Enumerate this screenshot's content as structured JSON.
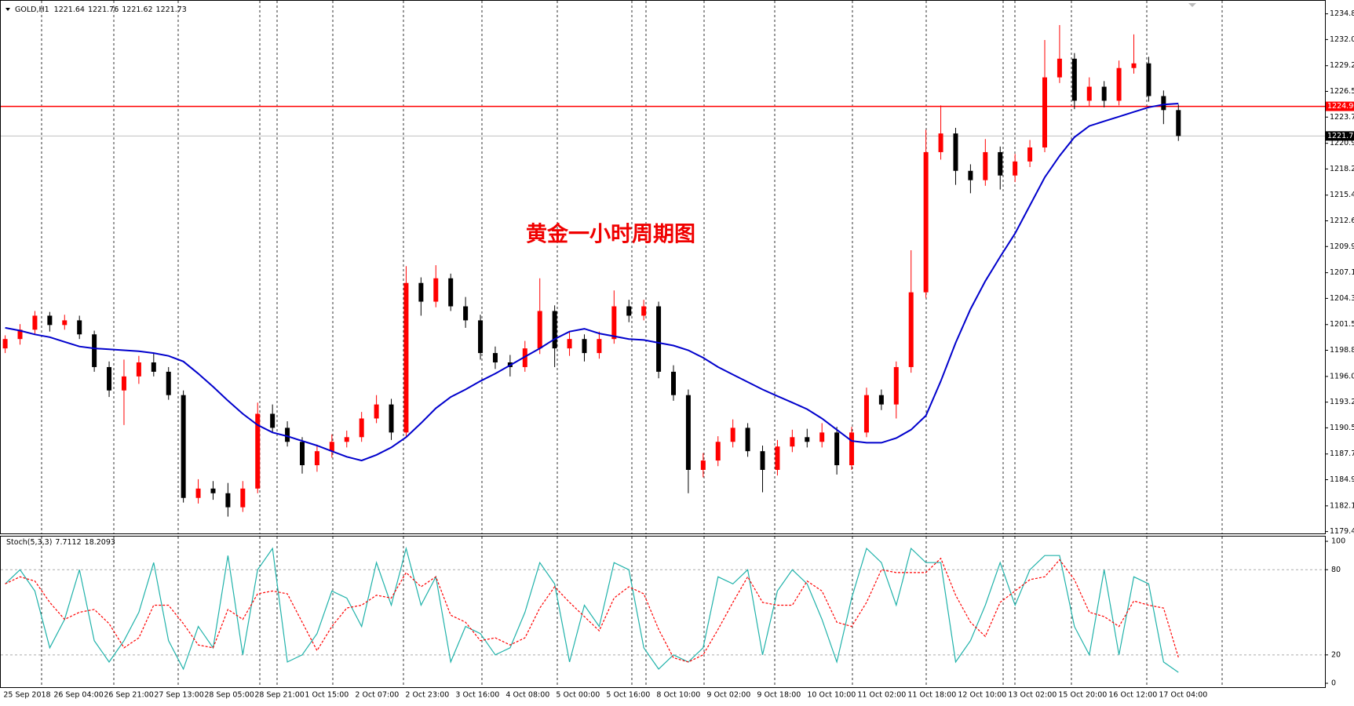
{
  "chart_data": {
    "type": "candlestick",
    "header": {
      "symbol": "GOLD,H1",
      "values": [
        1221.64,
        1221.76,
        1221.62,
        1221.73
      ]
    },
    "annotation": "黄金一小时周期图",
    "up_color": "#ff0000",
    "down_color": "#000000",
    "ylim": [
      1179.2,
      1236.28
    ],
    "yticks": [
      {
        "value": 1234.8,
        "label": "1234.80"
      },
      1232.05,
      1229.25,
      {
        "value": 1226.5,
        "label": "1226.50"
      },
      1223.75,
      1220.95,
      {
        "value": 1218.2,
        "label": "1218.20"
      },
      {
        "value": 1215.4,
        "label": "1215.40"
      },
      1212.65,
      {
        "value": 1209.9,
        "label": "1209.90"
      },
      {
        "value": 1207.1,
        "label": "1207.10"
      },
      1204.35,
      1201.55,
      {
        "value": 1198.8,
        "label": "1198.80"
      },
      {
        "value": 1196,
        "label": "1196.00"
      },
      1193.25,
      {
        "value": 1190.5,
        "label": "1190.50"
      },
      {
        "value": 1187.7,
        "label": "1187.70"
      },
      1184.95,
      1182.15,
      {
        "value": 1179.4,
        "label": "1179.40"
      }
    ],
    "hline": {
      "value": 1224.9,
      "label": "1224.90",
      "color": "#ff0000"
    },
    "last_price": 1221.73,
    "xlabels": [
      "25 Sep 2018",
      "26 Sep 04:00",
      "26 Sep 21:00",
      "27 Sep 13:00",
      "28 Sep 05:00",
      "28 Sep 21:00",
      "1 Oct 15:00",
      "2 Oct 07:00",
      "2 Oct 23:00",
      "3 Oct 16:00",
      "4 Oct 08:00",
      "5 Oct 00:00",
      "5 Oct 16:00",
      "8 Oct 10:00",
      "9 Oct 02:00",
      "9 Oct 18:00",
      "10 Oct 10:00",
      "11 Oct 02:00",
      "11 Oct 18:00",
      "12 Oct 10:00",
      "13 Oct 02:00",
      "15 Oct 20:00",
      "16 Oct 12:00",
      "17 Oct 04:00"
    ],
    "ohlc": [
      [
        1199.0,
        1200.4,
        1198.5,
        1200.0
      ],
      [
        1200.0,
        1201.6,
        1199.4,
        1201.0
      ],
      [
        1201.0,
        1203.0,
        1200.5,
        1202.5
      ],
      [
        1202.5,
        1202.9,
        1200.8,
        1201.5
      ],
      [
        1201.5,
        1202.6,
        1201.0,
        1202.0
      ],
      [
        1202.0,
        1202.5,
        1200.0,
        1200.5
      ],
      [
        1200.5,
        1200.9,
        1196.5,
        1197.0
      ],
      [
        1197.0,
        1197.6,
        1193.8,
        1194.5
      ],
      [
        1194.5,
        1197.8,
        1190.8,
        1196.0
      ],
      [
        1196.0,
        1198.2,
        1195.2,
        1197.5
      ],
      [
        1197.5,
        1198.5,
        1196.0,
        1196.5
      ],
      [
        1196.5,
        1197.0,
        1193.5,
        1194.0
      ],
      [
        1194.0,
        1194.5,
        1182.5,
        1183.0
      ],
      [
        1183.0,
        1185.0,
        1182.4,
        1184.0
      ],
      [
        1184.0,
        1184.8,
        1182.8,
        1183.5
      ],
      [
        1183.5,
        1184.6,
        1181.0,
        1182.0
      ],
      [
        1182.0,
        1184.8,
        1181.5,
        1184.0
      ],
      [
        1184.0,
        1193.2,
        1183.5,
        1192.0
      ],
      [
        1192.0,
        1193.0,
        1190.0,
        1190.5
      ],
      [
        1190.5,
        1191.2,
        1188.5,
        1189.0
      ],
      [
        1189.0,
        1189.5,
        1185.6,
        1186.5
      ],
      [
        1186.5,
        1188.7,
        1185.8,
        1188.0
      ],
      [
        1188.0,
        1189.8,
        1187.3,
        1189.0
      ],
      [
        1189.0,
        1190.2,
        1188.4,
        1189.5
      ],
      [
        1189.5,
        1192.2,
        1189.0,
        1191.5
      ],
      [
        1191.5,
        1194.0,
        1191.0,
        1193.0
      ],
      [
        1193.0,
        1193.6,
        1189.2,
        1190.0
      ],
      [
        1190.0,
        1207.8,
        1189.6,
        1206.0
      ],
      [
        1206.0,
        1206.6,
        1202.5,
        1204.0
      ],
      [
        1204.0,
        1207.9,
        1203.4,
        1206.5
      ],
      [
        1206.5,
        1207.0,
        1203.0,
        1203.5
      ],
      [
        1203.5,
        1204.5,
        1201.2,
        1202.0
      ],
      [
        1202.0,
        1202.6,
        1197.8,
        1198.5
      ],
      [
        1198.5,
        1199.2,
        1196.8,
        1197.5
      ],
      [
        1197.5,
        1198.3,
        1196.0,
        1197.0
      ],
      [
        1197.0,
        1199.8,
        1196.5,
        1199.0
      ],
      [
        1199.0,
        1206.5,
        1198.4,
        1203.0
      ],
      [
        1203.0,
        1203.6,
        1197.0,
        1199.0
      ],
      [
        1199.0,
        1200.8,
        1198.2,
        1200.0
      ],
      [
        1200.0,
        1200.5,
        1197.6,
        1198.5
      ],
      [
        1198.5,
        1200.8,
        1197.9,
        1200.0
      ],
      [
        1200.0,
        1205.2,
        1199.5,
        1203.5
      ],
      [
        1203.5,
        1204.2,
        1201.8,
        1202.5
      ],
      [
        1202.5,
        1204.2,
        1202.0,
        1203.5
      ],
      [
        1203.5,
        1204.0,
        1195.8,
        1196.5
      ],
      [
        1196.5,
        1197.2,
        1193.4,
        1194.0
      ],
      [
        1194.0,
        1194.6,
        1183.5,
        1186.0
      ],
      [
        1186.0,
        1187.8,
        1185.2,
        1187.0
      ],
      [
        1187.0,
        1189.6,
        1186.4,
        1189.0
      ],
      [
        1189.0,
        1191.4,
        1188.4,
        1190.5
      ],
      [
        1190.5,
        1191.0,
        1187.4,
        1188.0
      ],
      [
        1188.0,
        1188.6,
        1183.6,
        1186.0
      ],
      [
        1186.0,
        1189.2,
        1185.4,
        1188.5
      ],
      [
        1188.5,
        1190.3,
        1187.9,
        1189.5
      ],
      [
        1189.5,
        1190.4,
        1188.4,
        1189.0
      ],
      [
        1189.0,
        1191.0,
        1188.4,
        1190.0
      ],
      [
        1190.0,
        1190.6,
        1185.5,
        1186.5
      ],
      [
        1186.5,
        1190.6,
        1186.0,
        1190.0
      ],
      [
        1190.0,
        1194.8,
        1189.5,
        1194.0
      ],
      [
        1194.0,
        1194.6,
        1192.4,
        1193.0
      ],
      [
        1193.0,
        1197.6,
        1191.5,
        1197.0
      ],
      [
        1197.0,
        1209.5,
        1196.4,
        1205.0
      ],
      [
        1205.0,
        1222.4,
        1204.4,
        1220.0
      ],
      [
        1220.0,
        1225.0,
        1219.2,
        1222.0
      ],
      [
        1222.0,
        1222.6,
        1216.5,
        1218.0
      ],
      [
        1218.0,
        1218.7,
        1215.6,
        1217.0
      ],
      [
        1217.0,
        1221.4,
        1216.4,
        1220.0
      ],
      [
        1220.0,
        1220.6,
        1216.0,
        1217.5
      ],
      [
        1217.5,
        1219.8,
        1216.8,
        1219.0
      ],
      [
        1219.0,
        1221.3,
        1218.4,
        1220.5
      ],
      [
        1220.5,
        1232.0,
        1220.0,
        1228.0
      ],
      [
        1228.0,
        1233.6,
        1227.4,
        1230.0
      ],
      [
        1230.0,
        1230.6,
        1224.6,
        1225.5
      ],
      [
        1225.5,
        1228.0,
        1224.9,
        1227.0
      ],
      [
        1227.0,
        1227.6,
        1224.8,
        1225.5
      ],
      [
        1225.5,
        1229.8,
        1225.0,
        1229.0
      ],
      [
        1229.0,
        1232.6,
        1228.4,
        1229.5
      ],
      [
        1229.5,
        1230.2,
        1225.4,
        1226.0
      ],
      [
        1226.0,
        1226.6,
        1223.0,
        1224.5
      ],
      [
        1224.5,
        1225.1,
        1221.2,
        1221.73
      ]
    ],
    "ma": {
      "color": "#0000cc",
      "values": [
        1201.2,
        1200.9,
        1200.5,
        1200.2,
        1199.7,
        1199.2,
        1199,
        1198.9,
        1198.8,
        1198.7,
        1198.5,
        1198.2,
        1197.6,
        1196.3,
        1194.9,
        1193.4,
        1192,
        1190.8,
        1190,
        1189.6,
        1189.1,
        1188.6,
        1188,
        1187.4,
        1187,
        1187.6,
        1188.4,
        1189.5,
        1191,
        1192.6,
        1193.8,
        1194.6,
        1195.5,
        1196.3,
        1197.2,
        1198.1,
        1199,
        1200,
        1200.8,
        1201.1,
        1200.6,
        1200.3,
        1200,
        1199.9,
        1199.6,
        1199.3,
        1198.8,
        1198,
        1197,
        1196.2,
        1195.4,
        1194.6,
        1193.9,
        1193.2,
        1192.5,
        1191.5,
        1190.3,
        1189.1,
        1188.9,
        1188.9,
        1189.4,
        1190.3,
        1191.8,
        1195.5,
        1199.6,
        1203.2,
        1206.2,
        1208.8,
        1211.3,
        1214.3,
        1217.3,
        1219.6,
        1221.6,
        1222.8,
        1223.3,
        1223.8,
        1224.3,
        1224.8,
        1225.1,
        1225.2
      ]
    },
    "stoch": {
      "title": "Stoch(5,3,3)",
      "k_value": 7.7112,
      "d_value": 18.2093,
      "ylim": [
        -3.3,
        103.9
      ],
      "yticks": [
        0,
        20,
        80,
        100
      ],
      "levels": [
        20,
        80
      ],
      "series": [
        {
          "color": "#20b2aa",
          "values": [
            70,
            80,
            65,
            25,
            45,
            80,
            30,
            15,
            30,
            50,
            85,
            30,
            10,
            40,
            25,
            90,
            20,
            80,
            95,
            15,
            20,
            35,
            65,
            60,
            40,
            85,
            55,
            95,
            55,
            75,
            15,
            40,
            35,
            20,
            25,
            50,
            85,
            70,
            15,
            55,
            40,
            85,
            80,
            25,
            10,
            20,
            15,
            25,
            75,
            70,
            80,
            20,
            65,
            80,
            70,
            45,
            15,
            60,
            95,
            85,
            55,
            95,
            85,
            85,
            15,
            30,
            55,
            85,
            55,
            80,
            90,
            90,
            40,
            20,
            80,
            20,
            75,
            70,
            15,
            7.7112
          ]
        },
        {
          "color": "#ff0000",
          "values": [
            70,
            75,
            72,
            57,
            45,
            50,
            52,
            42,
            25,
            32,
            55,
            55,
            42,
            27,
            25,
            52,
            45,
            63,
            65,
            63,
            43,
            23,
            40,
            53,
            55,
            62,
            60,
            78,
            68,
            75,
            48,
            43,
            30,
            32,
            27,
            32,
            53,
            68,
            57,
            47,
            37,
            60,
            68,
            63,
            38,
            18,
            15,
            20,
            38,
            57,
            75,
            57,
            55,
            55,
            72,
            65,
            43,
            40,
            57,
            80,
            78,
            78,
            78,
            88,
            62,
            43,
            33,
            57,
            65,
            73,
            75,
            87,
            73,
            50,
            47,
            40,
            58,
            55,
            53,
            18.2093
          ]
        }
      ]
    }
  }
}
